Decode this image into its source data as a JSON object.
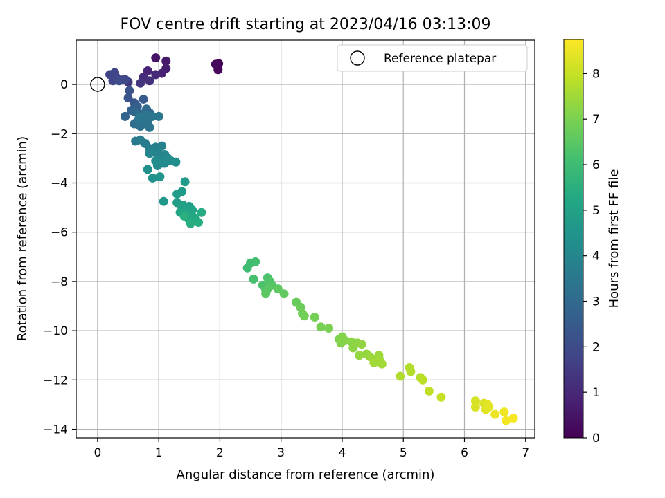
{
  "chart_data": {
    "type": "scatter",
    "title": "FOV centre drift starting at 2023/04/16 03:13:09",
    "xlabel": "Angular distance from reference (arcmin)",
    "ylabel": "Rotation from reference (arcmin)",
    "xlim": [
      -0.35,
      7.15
    ],
    "ylim": [
      -14.35,
      1.8
    ],
    "xticks": [
      0,
      1,
      2,
      3,
      4,
      5,
      6,
      7
    ],
    "yticks": [
      -14,
      -12,
      -10,
      -8,
      -6,
      -4,
      -2,
      0
    ],
    "grid": true,
    "legend": {
      "placement": "top-right",
      "entries": [
        "Reference platepar"
      ]
    },
    "reference_point": {
      "x": 0,
      "y": 0
    },
    "colorbar": {
      "label": "Hours from first FF file",
      "range": [
        0,
        8.75
      ],
      "ticks": [
        0,
        1,
        2,
        3,
        4,
        5,
        6,
        7,
        8
      ],
      "colormap": "viridis"
    },
    "points": [
      [
        1.95,
        0.8,
        0.05
      ],
      [
        1.98,
        0.85,
        0.1
      ],
      [
        1.97,
        0.6,
        0.15
      ],
      [
        1.93,
        0.82,
        0.2
      ],
      [
        0.95,
        1.08,
        0.5
      ],
      [
        1.12,
        0.95,
        0.6
      ],
      [
        1.12,
        0.65,
        0.7
      ],
      [
        1.05,
        0.45,
        0.8
      ],
      [
        0.82,
        0.55,
        0.9
      ],
      [
        0.95,
        0.4,
        1.0
      ],
      [
        0.75,
        0.3,
        1.1
      ],
      [
        0.85,
        0.15,
        1.2
      ],
      [
        0.7,
        0.05,
        1.3
      ],
      [
        0.5,
        0.1,
        1.4
      ],
      [
        0.4,
        0.18,
        1.5
      ],
      [
        0.3,
        0.3,
        1.6
      ],
      [
        0.2,
        0.4,
        1.7
      ],
      [
        0.25,
        0.15,
        1.8
      ],
      [
        0.28,
        0.48,
        1.85
      ],
      [
        0.45,
        0.2,
        1.9
      ],
      [
        0.35,
        0.15,
        2.0
      ],
      [
        0.52,
        -0.25,
        2.2
      ],
      [
        0.5,
        -0.55,
        2.3
      ],
      [
        0.6,
        -0.75,
        2.4
      ],
      [
        0.75,
        -0.6,
        2.5
      ],
      [
        0.65,
        -0.9,
        2.6
      ],
      [
        0.55,
        -1.05,
        2.7
      ],
      [
        0.45,
        -1.3,
        2.8
      ],
      [
        0.6,
        -1.1,
        2.9
      ],
      [
        0.7,
        -1.2,
        2.95
      ],
      [
        0.8,
        -1.0,
        3.0
      ],
      [
        0.85,
        -1.15,
        3.05
      ],
      [
        0.75,
        -1.4,
        3.1
      ],
      [
        0.65,
        -1.5,
        3.15
      ],
      [
        0.6,
        -1.6,
        3.2
      ],
      [
        0.7,
        -1.7,
        3.25
      ],
      [
        0.82,
        -1.55,
        3.3
      ],
      [
        0.85,
        -1.75,
        3.35
      ],
      [
        0.9,
        -1.3,
        3.4
      ],
      [
        0.78,
        -1.25,
        3.4
      ],
      [
        1.0,
        -1.3,
        3.45
      ],
      [
        0.68,
        -1.35,
        3.45
      ],
      [
        0.62,
        -2.3,
        3.55
      ],
      [
        0.7,
        -2.25,
        3.6
      ],
      [
        0.78,
        -2.4,
        3.65
      ],
      [
        0.85,
        -2.6,
        3.7
      ],
      [
        0.95,
        -2.55,
        3.75
      ],
      [
        1.05,
        -2.5,
        3.8
      ],
      [
        0.9,
        -2.75,
        3.85
      ],
      [
        1.0,
        -2.8,
        3.9
      ],
      [
        0.85,
        -2.8,
        3.95
      ],
      [
        1.1,
        -2.85,
        4.0
      ],
      [
        1.0,
        -3.0,
        4.0
      ],
      [
        1.15,
        -3.0,
        4.05
      ],
      [
        1.05,
        -3.2,
        4.1
      ],
      [
        0.98,
        -3.3,
        4.15
      ],
      [
        1.1,
        -3.2,
        4.15
      ],
      [
        1.2,
        -3.1,
        4.2
      ],
      [
        0.95,
        -3.1,
        4.25
      ],
      [
        1.28,
        -3.15,
        4.3
      ],
      [
        0.82,
        -3.45,
        4.35
      ],
      [
        0.9,
        -3.8,
        4.4
      ],
      [
        1.02,
        -3.75,
        4.5
      ],
      [
        1.08,
        -4.75,
        4.55
      ],
      [
        1.43,
        -3.95,
        4.7
      ],
      [
        1.38,
        -4.35,
        4.75
      ],
      [
        1.3,
        -4.45,
        4.8
      ],
      [
        1.3,
        -4.8,
        4.85
      ],
      [
        1.4,
        -4.9,
        4.9
      ],
      [
        1.5,
        -4.95,
        4.95
      ],
      [
        1.38,
        -5.0,
        5.0
      ],
      [
        1.55,
        -5.1,
        5.05
      ],
      [
        1.45,
        -5.2,
        5.1
      ],
      [
        1.35,
        -5.2,
        5.15
      ],
      [
        1.55,
        -5.35,
        5.2
      ],
      [
        1.5,
        -5.5,
        5.25
      ],
      [
        1.6,
        -5.45,
        5.3
      ],
      [
        1.7,
        -5.2,
        5.35
      ],
      [
        1.65,
        -5.6,
        5.4
      ],
      [
        1.52,
        -5.65,
        5.45
      ],
      [
        1.42,
        -5.35,
        5.5
      ],
      [
        2.45,
        -7.45,
        6.0
      ],
      [
        2.5,
        -7.25,
        6.05
      ],
      [
        2.58,
        -7.2,
        6.1
      ],
      [
        2.55,
        -7.9,
        6.15
      ],
      [
        2.7,
        -8.15,
        6.2
      ],
      [
        2.78,
        -7.85,
        6.25
      ],
      [
        2.82,
        -8.0,
        6.3
      ],
      [
        2.75,
        -8.35,
        6.35
      ],
      [
        2.85,
        -8.15,
        6.4
      ],
      [
        2.78,
        -8.3,
        6.45
      ],
      [
        2.75,
        -8.5,
        6.5
      ],
      [
        2.95,
        -8.3,
        6.55
      ],
      [
        3.05,
        -8.5,
        6.6
      ],
      [
        3.25,
        -8.85,
        6.7
      ],
      [
        3.32,
        -9.05,
        6.75
      ],
      [
        3.35,
        -9.3,
        6.8
      ],
      [
        3.38,
        -9.4,
        6.85
      ],
      [
        3.55,
        -9.45,
        6.9
      ],
      [
        3.65,
        -9.85,
        6.95
      ],
      [
        3.78,
        -9.9,
        7.0
      ],
      [
        3.95,
        -10.35,
        7.05
      ],
      [
        4.0,
        -10.25,
        7.1
      ],
      [
        4.05,
        -10.4,
        7.15
      ],
      [
        3.98,
        -10.5,
        7.15
      ],
      [
        4.15,
        -10.45,
        7.2
      ],
      [
        4.25,
        -10.5,
        7.25
      ],
      [
        4.18,
        -10.7,
        7.25
      ],
      [
        4.32,
        -10.55,
        7.3
      ],
      [
        4.28,
        -11.0,
        7.35
      ],
      [
        4.4,
        -10.95,
        7.35
      ],
      [
        4.45,
        -11.05,
        7.4
      ],
      [
        4.55,
        -11.15,
        7.45
      ],
      [
        4.6,
        -11.0,
        7.45
      ],
      [
        4.52,
        -11.3,
        7.5
      ],
      [
        4.65,
        -11.35,
        7.55
      ],
      [
        4.62,
        -11.2,
        7.5
      ],
      [
        4.95,
        -11.85,
        7.7
      ],
      [
        5.1,
        -11.5,
        7.75
      ],
      [
        5.12,
        -11.65,
        7.75
      ],
      [
        5.28,
        -11.9,
        7.8
      ],
      [
        5.32,
        -12.0,
        7.85
      ],
      [
        5.42,
        -12.45,
        7.9
      ],
      [
        5.62,
        -12.7,
        8.0
      ],
      [
        6.18,
        -12.85,
        8.2
      ],
      [
        6.18,
        -13.1,
        8.25
      ],
      [
        6.32,
        -12.95,
        8.3
      ],
      [
        6.35,
        -13.2,
        8.35
      ],
      [
        6.4,
        -13.1,
        8.4
      ],
      [
        6.38,
        -13.0,
        8.4
      ],
      [
        6.5,
        -13.4,
        8.5
      ],
      [
        6.65,
        -13.3,
        8.55
      ],
      [
        6.68,
        -13.65,
        8.6
      ],
      [
        6.8,
        -13.55,
        8.65
      ]
    ]
  }
}
